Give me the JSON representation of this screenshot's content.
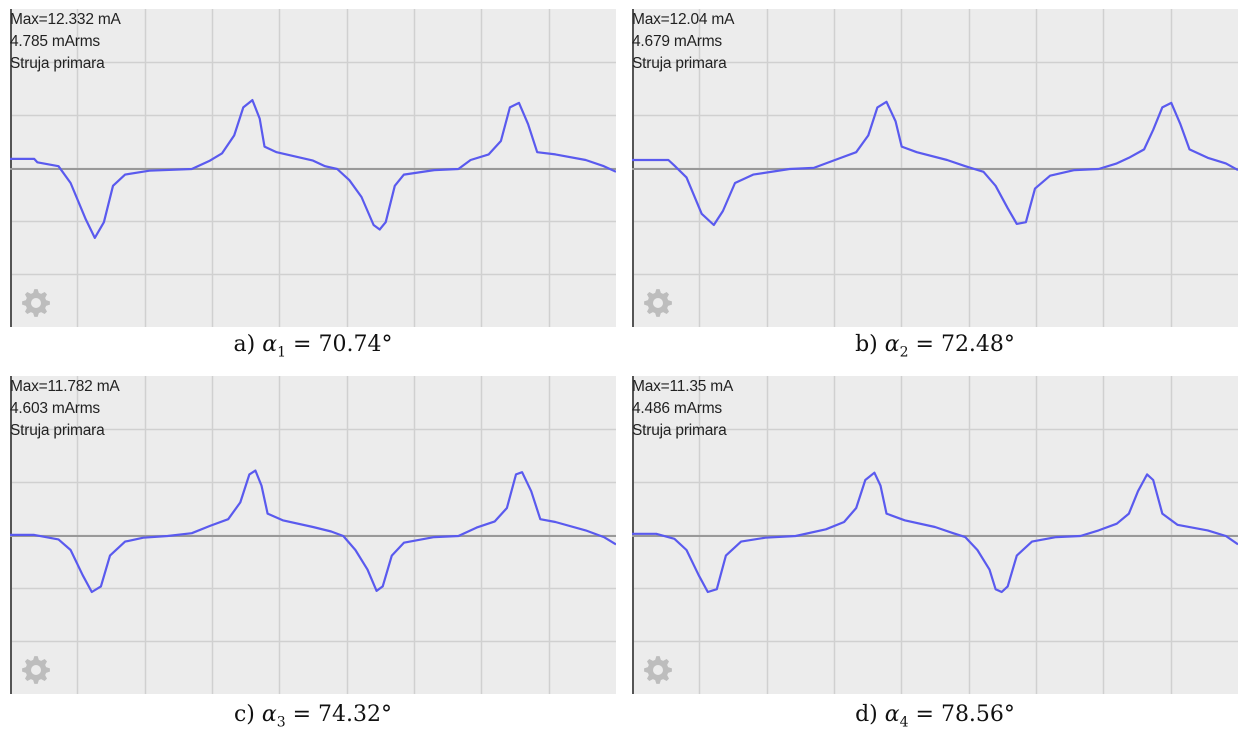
{
  "chart_data": [
    {
      "type": "line",
      "readout": {
        "max": "Max=12.332 mA",
        "rms": "4.785 mArms",
        "name": "Struja primara"
      },
      "caption": {
        "label": "a)",
        "symbol": "α",
        "sub": "1",
        "value": "= 70.74°"
      },
      "peak_ma": 12.332,
      "grid": true,
      "series": [
        {
          "color": "#5a5aee",
          "points": [
            [
              0,
              1.8
            ],
            [
              0.04,
              1.8
            ],
            [
              0.045,
              1.2
            ],
            [
              0.08,
              0.5
            ],
            [
              0.1,
              -2.5
            ],
            [
              0.125,
              -9.0
            ],
            [
              0.14,
              -12.3
            ],
            [
              0.155,
              -9.5
            ],
            [
              0.17,
              -3.0
            ],
            [
              0.19,
              -1.0
            ],
            [
              0.23,
              -0.3
            ],
            [
              0.3,
              0.0
            ],
            [
              0.33,
              1.5
            ],
            [
              0.35,
              2.8
            ],
            [
              0.37,
              6.0
            ],
            [
              0.385,
              11.0
            ],
            [
              0.4,
              12.3
            ],
            [
              0.412,
              9.0
            ],
            [
              0.42,
              4.0
            ],
            [
              0.44,
              3.0
            ],
            [
              0.5,
              1.5
            ],
            [
              0.52,
              0.5
            ],
            [
              0.54,
              0.0
            ],
            [
              0.56,
              -2.0
            ],
            [
              0.58,
              -5.0
            ],
            [
              0.6,
              -10.0
            ],
            [
              0.61,
              -10.8
            ],
            [
              0.62,
              -9.5
            ],
            [
              0.635,
              -3.0
            ],
            [
              0.65,
              -1.0
            ],
            [
              0.7,
              -0.2
            ],
            [
              0.74,
              0.0
            ],
            [
              0.76,
              1.6
            ],
            [
              0.79,
              2.6
            ],
            [
              0.81,
              5.0
            ],
            [
              0.825,
              11.0
            ],
            [
              0.84,
              11.8
            ],
            [
              0.855,
              8.0
            ],
            [
              0.87,
              3.0
            ],
            [
              0.9,
              2.6
            ],
            [
              0.95,
              1.6
            ],
            [
              0.98,
              0.5
            ],
            [
              1.0,
              -0.5
            ]
          ]
        }
      ]
    },
    {
      "type": "line",
      "readout": {
        "max": "Max=12.04 mA",
        "rms": "4.679 mArms",
        "name": "Struja primara"
      },
      "caption": {
        "label": "b)",
        "symbol": "α",
        "sub": "2",
        "value": "= 72.48°"
      },
      "peak_ma": 12.04,
      "grid": true,
      "series": [
        {
          "color": "#5a5aee",
          "points": [
            [
              0,
              1.6
            ],
            [
              0.06,
              1.6
            ],
            [
              0.07,
              0.6
            ],
            [
              0.09,
              -1.5
            ],
            [
              0.115,
              -8.0
            ],
            [
              0.135,
              -10.0
            ],
            [
              0.15,
              -7.5
            ],
            [
              0.17,
              -2.5
            ],
            [
              0.2,
              -1.0
            ],
            [
              0.26,
              0.0
            ],
            [
              0.3,
              0.2
            ],
            [
              0.34,
              1.8
            ],
            [
              0.37,
              3.0
            ],
            [
              0.39,
              6.0
            ],
            [
              0.405,
              11.0
            ],
            [
              0.42,
              12.0
            ],
            [
              0.435,
              8.5
            ],
            [
              0.445,
              4.0
            ],
            [
              0.47,
              3.0
            ],
            [
              0.52,
              1.6
            ],
            [
              0.55,
              0.5
            ],
            [
              0.58,
              -0.5
            ],
            [
              0.6,
              -3.0
            ],
            [
              0.62,
              -7.0
            ],
            [
              0.635,
              -9.8
            ],
            [
              0.65,
              -9.5
            ],
            [
              0.665,
              -3.5
            ],
            [
              0.69,
              -1.2
            ],
            [
              0.73,
              -0.2
            ],
            [
              0.77,
              0.0
            ],
            [
              0.8,
              1.0
            ],
            [
              0.82,
              2.0
            ],
            [
              0.845,
              3.5
            ],
            [
              0.86,
              7.0
            ],
            [
              0.875,
              11.0
            ],
            [
              0.89,
              11.8
            ],
            [
              0.905,
              8.0
            ],
            [
              0.92,
              3.5
            ],
            [
              0.95,
              2.0
            ],
            [
              0.98,
              1.0
            ],
            [
              1.0,
              -0.2
            ]
          ]
        }
      ]
    },
    {
      "type": "line",
      "readout": {
        "max": "Max=11.782 mA",
        "rms": "4.603 mArms",
        "name": "Struja primara"
      },
      "caption": {
        "label": "c)",
        "symbol": "α",
        "sub": "3",
        "value": "= 74.32°"
      },
      "peak_ma": 11.782,
      "grid": true,
      "series": [
        {
          "color": "#5a5aee",
          "points": [
            [
              0,
              0.2
            ],
            [
              0.04,
              0.2
            ],
            [
              0.08,
              -0.6
            ],
            [
              0.1,
              -2.5
            ],
            [
              0.12,
              -7.0
            ],
            [
              0.135,
              -10.0
            ],
            [
              0.15,
              -9.0
            ],
            [
              0.165,
              -3.5
            ],
            [
              0.19,
              -1.0
            ],
            [
              0.22,
              -0.3
            ],
            [
              0.26,
              0.0
            ],
            [
              0.3,
              0.5
            ],
            [
              0.33,
              1.8
            ],
            [
              0.36,
              3.0
            ],
            [
              0.38,
              6.0
            ],
            [
              0.395,
              11.0
            ],
            [
              0.405,
              11.7
            ],
            [
              0.415,
              9.0
            ],
            [
              0.425,
              4.0
            ],
            [
              0.45,
              2.8
            ],
            [
              0.5,
              1.6
            ],
            [
              0.53,
              0.8
            ],
            [
              0.55,
              0.0
            ],
            [
              0.57,
              -2.5
            ],
            [
              0.59,
              -6.0
            ],
            [
              0.605,
              -9.8
            ],
            [
              0.615,
              -9.0
            ],
            [
              0.63,
              -3.5
            ],
            [
              0.65,
              -1.2
            ],
            [
              0.7,
              -0.2
            ],
            [
              0.74,
              0.0
            ],
            [
              0.77,
              1.5
            ],
            [
              0.8,
              2.6
            ],
            [
              0.82,
              5.0
            ],
            [
              0.835,
              11.0
            ],
            [
              0.845,
              11.4
            ],
            [
              0.86,
              8.0
            ],
            [
              0.875,
              3.0
            ],
            [
              0.9,
              2.5
            ],
            [
              0.95,
              1.0
            ],
            [
              0.98,
              -0.2
            ],
            [
              1.0,
              -1.5
            ]
          ]
        }
      ]
    },
    {
      "type": "line",
      "readout": {
        "max": "Max=11.35 mA",
        "rms": "4.486 mArms",
        "name": "Struja primara"
      },
      "caption": {
        "label": "d)",
        "symbol": "α",
        "sub": "4",
        "value": "= 78.56°"
      },
      "peak_ma": 11.35,
      "grid": true,
      "series": [
        {
          "color": "#5a5aee",
          "points": [
            [
              0,
              0.4
            ],
            [
              0.04,
              0.4
            ],
            [
              0.07,
              -0.5
            ],
            [
              0.09,
              -2.5
            ],
            [
              0.11,
              -7.0
            ],
            [
              0.125,
              -10.0
            ],
            [
              0.14,
              -9.5
            ],
            [
              0.155,
              -3.5
            ],
            [
              0.18,
              -1.0
            ],
            [
              0.22,
              -0.3
            ],
            [
              0.27,
              0.0
            ],
            [
              0.32,
              1.2
            ],
            [
              0.35,
              2.5
            ],
            [
              0.37,
              5.0
            ],
            [
              0.385,
              10.0
            ],
            [
              0.4,
              11.3
            ],
            [
              0.41,
              9.0
            ],
            [
              0.42,
              4.0
            ],
            [
              0.45,
              2.8
            ],
            [
              0.5,
              1.6
            ],
            [
              0.53,
              0.5
            ],
            [
              0.55,
              -0.2
            ],
            [
              0.57,
              -2.5
            ],
            [
              0.59,
              -6.0
            ],
            [
              0.6,
              -9.5
            ],
            [
              0.61,
              -10.0
            ],
            [
              0.62,
              -9.0
            ],
            [
              0.635,
              -3.5
            ],
            [
              0.66,
              -1.0
            ],
            [
              0.7,
              -0.2
            ],
            [
              0.74,
              0.0
            ],
            [
              0.77,
              1.0
            ],
            [
              0.8,
              2.2
            ],
            [
              0.82,
              4.0
            ],
            [
              0.835,
              8.0
            ],
            [
              0.85,
              11.0
            ],
            [
              0.86,
              10.0
            ],
            [
              0.875,
              4.0
            ],
            [
              0.9,
              2.0
            ],
            [
              0.95,
              1.0
            ],
            [
              0.98,
              0.0
            ],
            [
              1.0,
              -1.5
            ]
          ]
        }
      ]
    }
  ],
  "colors": {
    "plot_background": "#ececec",
    "grid": "#d0d0d0",
    "zero_line": "#999999",
    "signal": "#5a5aee"
  },
  "icons": {
    "settings": "gear-icon"
  }
}
